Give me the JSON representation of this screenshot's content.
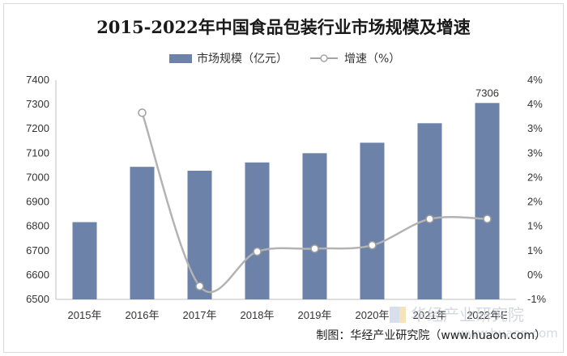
{
  "chart_data": {
    "type": "bar",
    "title": "2015-2022年中国食品包装行业市场规模及增速",
    "categories": [
      "2015年",
      "2016年",
      "2017年",
      "2018年",
      "2019年",
      "2020年",
      "2021年",
      "2022年E"
    ],
    "series": [
      {
        "name": "市场规模（亿元）",
        "type": "bar",
        "axis": "left",
        "color": "#6d82a8",
        "values": [
          6817,
          7044,
          7028,
          7062,
          7100,
          7143,
          7223,
          7306
        ]
      },
      {
        "name": "增速（%）",
        "type": "line",
        "axis": "right",
        "color": "#b3b3b3",
        "values": [
          null,
          3.33,
          -0.23,
          0.48,
          0.54,
          0.61,
          1.15,
          1.15
        ]
      }
    ],
    "data_labels": [
      {
        "category": "2022年E",
        "text": "7306"
      }
    ],
    "y_left": {
      "min": 6500,
      "max": 7400,
      "ticks": [
        "6500",
        "6600",
        "6700",
        "6800",
        "6900",
        "7000",
        "7100",
        "7200",
        "7300",
        "7400"
      ]
    },
    "y_right": {
      "min": -0.5,
      "max": 4,
      "ticks": [
        "-1%",
        "0%",
        "1%",
        "1%",
        "2%",
        "2%",
        "3%",
        "3%",
        "4%",
        "4%"
      ]
    },
    "legend_position": "top",
    "grid": false
  },
  "footer": {
    "source": "制图：华经产业研究院（www.huaon.com）",
    "watermark": "华经产业研究院",
    "watermark_url": "www.huaon.com"
  }
}
